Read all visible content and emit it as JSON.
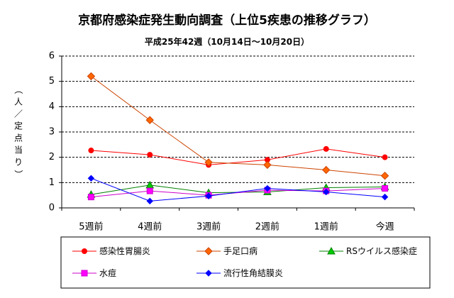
{
  "chart_data": {
    "type": "line",
    "title": "京都府感染症発生動向調査（上位5疾患の推移グラフ）",
    "subtitle": "平成25年42週（10月14日～10月20日）",
    "ylabel": "（人／定点当り）",
    "xlabel": "",
    "ylim": [
      0,
      6
    ],
    "yticks": [
      0,
      1,
      2,
      3,
      4,
      5,
      6
    ],
    "grid": "horizontal dashed",
    "legend_position": "bottom",
    "categories": [
      "5週前",
      "4週前",
      "3週前",
      "2週前",
      "1週前",
      "今週"
    ],
    "series": [
      {
        "name": "感染性胃腸炎",
        "color": "#ff0000",
        "marker": "circle",
        "values": [
          2.27,
          2.1,
          1.7,
          1.9,
          2.33,
          2.0
        ]
      },
      {
        "name": "手足口病",
        "color": "#cc4400",
        "fill": "#ff6600",
        "marker": "diamond",
        "values": [
          5.2,
          3.47,
          1.8,
          1.7,
          1.5,
          1.27
        ]
      },
      {
        "name": "RSウイルス感染症",
        "color": "#008000",
        "fill": "#00cc00",
        "marker": "triangle",
        "values": [
          0.53,
          0.9,
          0.6,
          0.63,
          0.8,
          0.83
        ]
      },
      {
        "name": "水痘",
        "color": "#cc00cc",
        "fill": "#ff00ff",
        "marker": "square",
        "values": [
          0.43,
          0.67,
          0.5,
          0.7,
          0.67,
          0.77
        ]
      },
      {
        "name": "流行性角結膜炎",
        "color": "#0000ff",
        "marker": "diamond-small",
        "values": [
          1.17,
          0.27,
          0.47,
          0.77,
          0.63,
          0.43
        ]
      }
    ]
  }
}
